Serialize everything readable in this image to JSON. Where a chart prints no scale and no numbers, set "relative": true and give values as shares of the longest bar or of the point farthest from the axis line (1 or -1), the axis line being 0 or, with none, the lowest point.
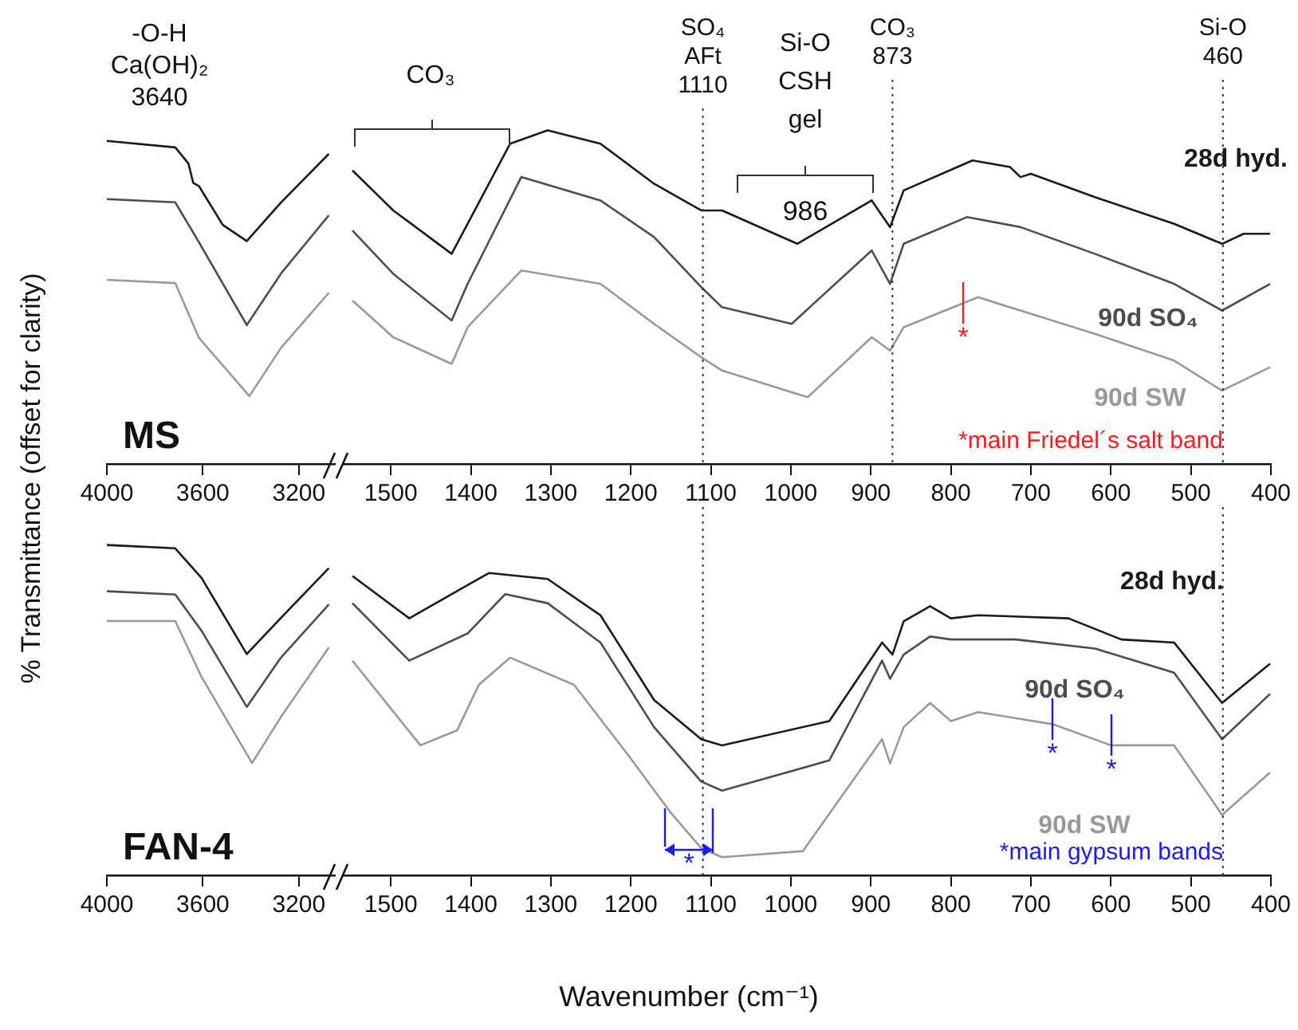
{
  "chart_data": [
    {
      "type": "line",
      "relative": true,
      "ylabel": "% Transmittance (offset for clarity)",
      "xlim": [
        4000,
        3050
      ],
      "xticks": [
        4000,
        3600,
        3200
      ],
      "annotations": [
        "-O-H\nCa(OH)₂\n3640",
        "MS"
      ],
      "series": [
        {
          "color": "#1a1a1a",
          "x": [
            4000,
            3715,
            3660,
            3640,
            3616,
            3517,
            3417,
            3274,
            3075
          ],
          "values": [
            1.0,
            0.98,
            0.93,
            0.87,
            0.86,
            0.74,
            0.69,
            0.81,
            0.96
          ]
        },
        {
          "color": "#4d4d4d",
          "x": [
            4000,
            3715,
            3627,
            3417,
            3274,
            3075
          ],
          "values": [
            0.82,
            0.81,
            0.7,
            0.43,
            0.59,
            0.77
          ]
        },
        {
          "color": "#999999",
          "x": [
            4000,
            3715,
            3616,
            3406,
            3274,
            3075
          ],
          "values": [
            0.57,
            0.56,
            0.39,
            0.21,
            0.36,
            0.53
          ]
        }
      ]
    },
    {
      "type": "line",
      "relative": true,
      "xlim": [
        1560,
        400
      ],
      "xticks": [
        1500,
        1400,
        1300,
        1200,
        1100,
        1000,
        900,
        800,
        700,
        600,
        500,
        400
      ],
      "ref_lines": [
        {
          "axis": "x",
          "value": 1110,
          "label": "SO₄\nAFt\n1110",
          "color": "#333333",
          "line_style": "dotted"
        },
        {
          "axis": "x",
          "value": 873,
          "label": "CO₃\n873",
          "color": "#333333",
          "line_style": "dotted"
        },
        {
          "axis": "x",
          "value": 460,
          "label": "Si-O\n460",
          "color": "#333333",
          "line_style": "dotted"
        }
      ],
      "annotations": [
        "CO₃",
        "Si-O\nCSH\ngel",
        "986",
        "*",
        "*main Friedel´s salt band"
      ],
      "series": [
        {
          "name": "28d hyd.",
          "color": "#1a1a1a",
          "x": [
            1548,
            1497,
            1424,
            1404,
            1351,
            1304,
            1238,
            1171,
            1112,
            1086,
            992,
            899,
            876,
            859,
            773,
            726,
            713,
            700,
            620,
            521,
            461,
            434,
            401
          ],
          "values": [
            0.88,
            0.76,
            0.63,
            0.72,
            0.96,
            1.0,
            0.96,
            0.84,
            0.76,
            0.76,
            0.66,
            0.79,
            0.71,
            0.82,
            0.91,
            0.89,
            0.86,
            0.87,
            0.8,
            0.72,
            0.66,
            0.69,
            0.69
          ]
        },
        {
          "name": "90d SO₄",
          "color": "#4d4d4d",
          "x": [
            1548,
            1497,
            1424,
            1404,
            1337,
            1238,
            1171,
            1112,
            1086,
            999,
            899,
            876,
            859,
            780,
            713,
            620,
            521,
            461,
            401
          ],
          "values": [
            0.7,
            0.57,
            0.43,
            0.54,
            0.86,
            0.79,
            0.68,
            0.53,
            0.47,
            0.42,
            0.64,
            0.54,
            0.66,
            0.74,
            0.71,
            0.63,
            0.54,
            0.46,
            0.54
          ]
        },
        {
          "name": "90d SW",
          "color": "#999999",
          "x": [
            1548,
            1497,
            1424,
            1404,
            1337,
            1238,
            1171,
            1112,
            1086,
            979,
            899,
            876,
            859,
            766,
            713,
            620,
            521,
            461,
            401
          ],
          "values": [
            0.49,
            0.38,
            0.3,
            0.41,
            0.58,
            0.54,
            0.42,
            0.32,
            0.28,
            0.2,
            0.38,
            0.34,
            0.41,
            0.5,
            0.46,
            0.39,
            0.31,
            0.22,
            0.29
          ]
        }
      ]
    },
    {
      "type": "line",
      "relative": true,
      "xlim": [
        4000,
        3050
      ],
      "xticks": [
        4000,
        3600,
        3200
      ],
      "annotations": [
        "FAN-4"
      ],
      "series": [
        {
          "color": "#1a1a1a",
          "x": [
            4000,
            3715,
            3605,
            3417,
            3274,
            3075
          ],
          "values": [
            1.0,
            0.99,
            0.9,
            0.67,
            0.78,
            0.93
          ]
        },
        {
          "color": "#4d4d4d",
          "x": [
            4000,
            3715,
            3605,
            3417,
            3274,
            3075
          ],
          "values": [
            0.86,
            0.85,
            0.74,
            0.51,
            0.66,
            0.82
          ]
        },
        {
          "color": "#999999",
          "x": [
            4000,
            3715,
            3605,
            3395,
            3274,
            3075
          ],
          "values": [
            0.77,
            0.77,
            0.6,
            0.34,
            0.48,
            0.69
          ]
        }
      ]
    },
    {
      "type": "line",
      "relative": true,
      "xlabel": "Wavenumber (cm⁻¹)",
      "xlim": [
        1560,
        400
      ],
      "xticks": [
        1500,
        1400,
        1300,
        1200,
        1100,
        1000,
        900,
        800,
        700,
        600,
        500,
        400
      ],
      "ref_lines": [
        {
          "axis": "x",
          "value": 1110,
          "color": "#333333",
          "line_style": "dotted"
        },
        {
          "axis": "x",
          "value": 460,
          "color": "#333333",
          "line_style": "dotted"
        }
      ],
      "annotations": [
        "*",
        "*",
        "*",
        "*main gypsum bands"
      ],
      "series": [
        {
          "name": "28d hyd.",
          "color": "#1a1a1a",
          "x": [
            1548,
            1477,
            1404,
            1377,
            1304,
            1238,
            1171,
            1112,
            1086,
            952,
            886,
            873,
            859,
            826,
            800,
            766,
            653,
            587,
            521,
            461,
            401
          ],
          "values": [
            0.99,
            0.85,
            0.96,
            1.0,
            0.98,
            0.86,
            0.58,
            0.45,
            0.43,
            0.51,
            0.77,
            0.73,
            0.84,
            0.89,
            0.85,
            0.86,
            0.85,
            0.78,
            0.77,
            0.57,
            0.7
          ]
        },
        {
          "name": "90d SO₄",
          "color": "#4d4d4d",
          "x": [
            1548,
            1477,
            1404,
            1357,
            1304,
            1238,
            1171,
            1112,
            1086,
            952,
            886,
            876,
            859,
            826,
            800,
            719,
            620,
            521,
            461,
            401
          ],
          "values": [
            0.9,
            0.71,
            0.8,
            0.93,
            0.9,
            0.77,
            0.49,
            0.31,
            0.28,
            0.38,
            0.71,
            0.65,
            0.73,
            0.79,
            0.78,
            0.78,
            0.75,
            0.67,
            0.45,
            0.6
          ]
        },
        {
          "name": "90d SW",
          "color": "#999999",
          "x": [
            1548,
            1463,
            1417,
            1390,
            1351,
            1271,
            1204,
            1151,
            1112,
            1086,
            985,
            886,
            876,
            859,
            826,
            800,
            766,
            673,
            600,
            521,
            461,
            401
          ],
          "values": [
            0.71,
            0.43,
            0.48,
            0.63,
            0.72,
            0.63,
            0.4,
            0.21,
            0.09,
            0.06,
            0.08,
            0.45,
            0.37,
            0.49,
            0.57,
            0.51,
            0.54,
            0.5,
            0.43,
            0.43,
            0.2,
            0.34
          ]
        }
      ]
    }
  ]
}
